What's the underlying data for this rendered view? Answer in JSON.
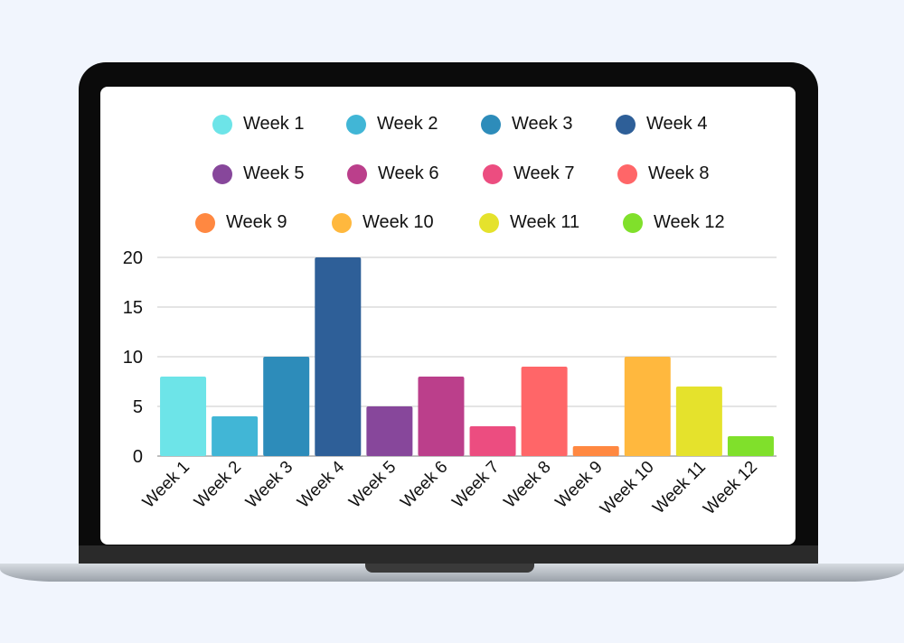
{
  "chart_data": {
    "type": "bar",
    "categories": [
      "Week 1",
      "Week 2",
      "Week 3",
      "Week 4",
      "Week 5",
      "Week 6",
      "Week 7",
      "Week 8",
      "Week 9",
      "Week 10",
      "Week 11",
      "Week 12"
    ],
    "values": [
      8,
      4,
      10,
      20,
      5,
      8,
      3,
      9,
      1,
      10,
      7,
      2
    ],
    "colors": [
      "#6de4e8",
      "#41b6d6",
      "#2d8cba",
      "#2e5f98",
      "#87479b",
      "#bb3f8b",
      "#ec4d80",
      "#ff6668",
      "#ff8841",
      "#ffb83e",
      "#e5e22c",
      "#80e02b"
    ],
    "ylim": [
      0,
      20
    ],
    "yticks": [
      "0",
      "5",
      "10",
      "15",
      "20"
    ],
    "grid": true,
    "legend": "top",
    "xlabel": "",
    "ylabel": "",
    "title": ""
  }
}
